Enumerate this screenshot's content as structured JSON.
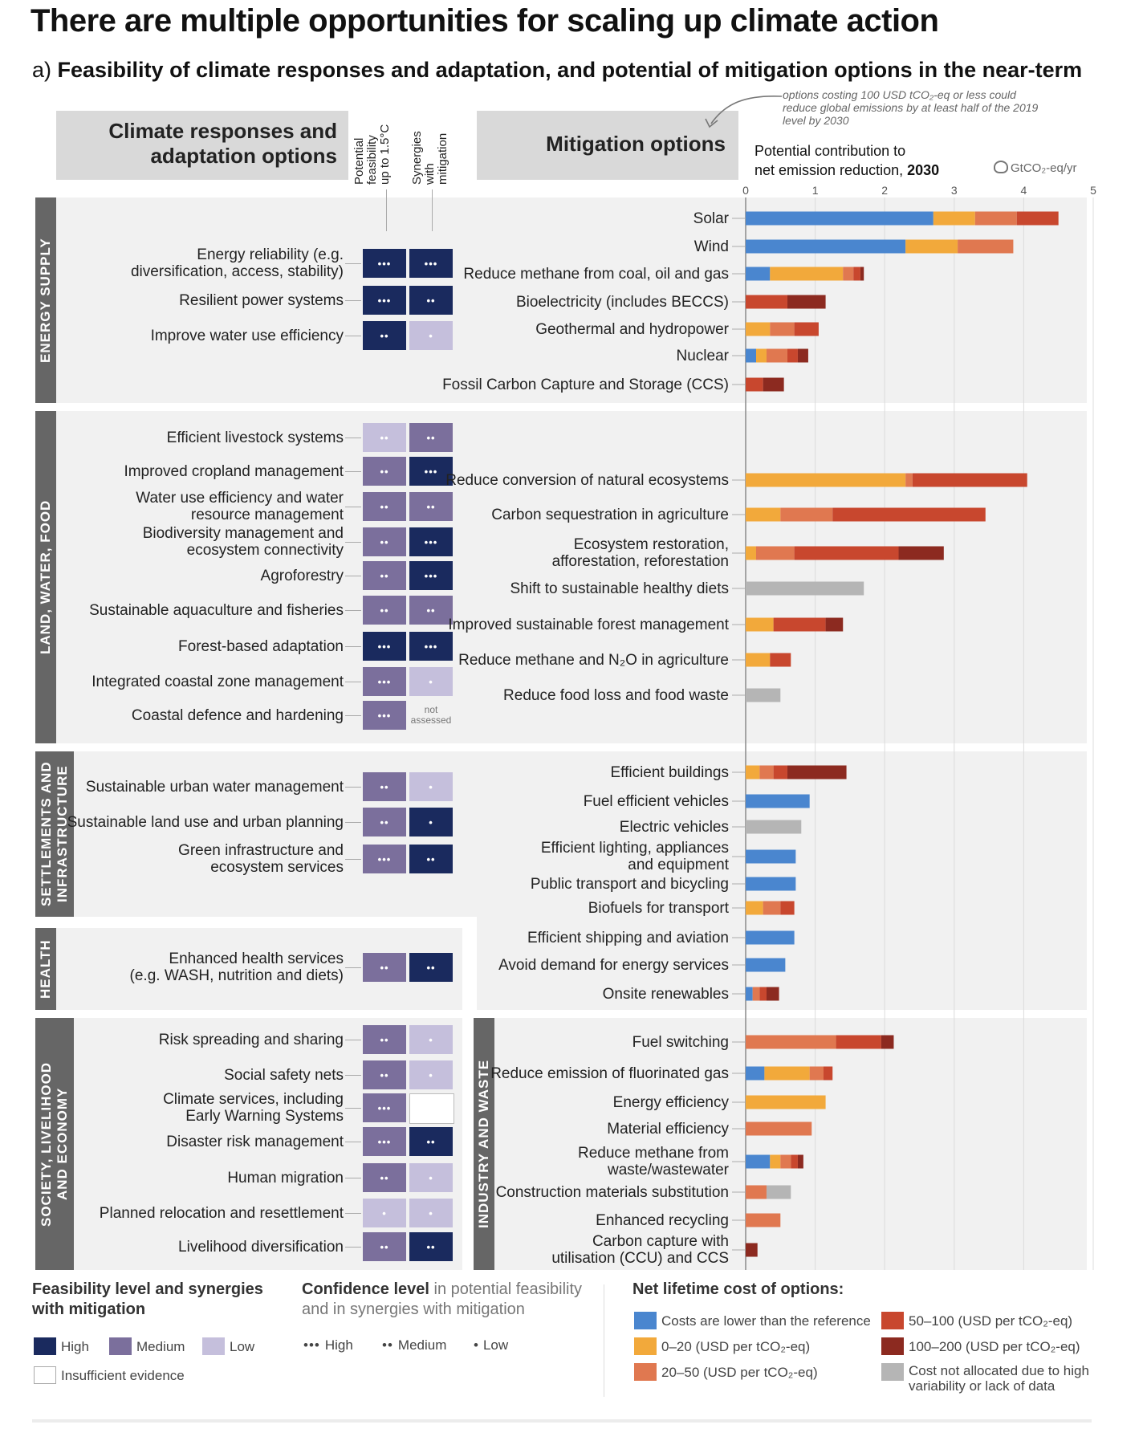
{
  "title": "There are multiple opportunities for scaling up climate action",
  "subtitle_prefix": "a) ",
  "subtitle_bold": "Feasibility of climate responses and adaptation, and potential of mitigation options in the near-term",
  "headers": {
    "adaptation": "Climate responses and\nadaptation options",
    "feasibility_col": "Potential\nfeasibility\nup to 1.5°C",
    "synergies_col": "Synergies\nwith\nmitigation",
    "mitigation": "Mitigation options",
    "potential_label": "Potential contribution to\nnet emission reduction, ",
    "potential_year": "2030",
    "unit": "GtCO₂-eq/yr",
    "note": "options costing 100 USD tCO₂-eq or less could reduce global emissions by at least half of the 2019 level by 2030",
    "not_assessed": "not\nassessed"
  },
  "colors": {
    "high": "#1a2a5e",
    "medium": "#7b6f9c",
    "low": "#c5bfdc",
    "insufficient": "#ffffff",
    "cost_lower": "#4a86cf",
    "cost_0_20": "#f2a93b",
    "cost_20_50": "#e07850",
    "cost_50_100": "#c8472e",
    "cost_100_200": "#8c2a20",
    "cost_na": "#b5b5b5"
  },
  "sections": {
    "energy": "ENERGY SUPPLY",
    "land": "LAND, WATER, FOOD",
    "settlements": "SETTLEMENTS AND\nINFRASTRUCTURE",
    "health": "HEALTH",
    "society": "SOCIETY, LIVELIHOOD\nAND ECONOMY",
    "industry": "INDUSTRY AND WASTE"
  },
  "adaptation": [
    {
      "label": "Energy reliability (e.g.\ndiversification, access, stability)",
      "feasibility": "high",
      "f_conf": "•••",
      "synergy": "high",
      "s_conf": "•••"
    },
    {
      "label": "Resilient power systems",
      "feasibility": "high",
      "f_conf": "•••",
      "synergy": "high",
      "s_conf": "••"
    },
    {
      "label": "Improve water use efficiency",
      "feasibility": "high",
      "f_conf": "••",
      "synergy": "low",
      "s_conf": "•"
    },
    {
      "label": "Efficient livestock systems",
      "feasibility": "low",
      "f_conf": "••",
      "synergy": "medium",
      "s_conf": "••"
    },
    {
      "label": "Improved cropland management",
      "feasibility": "medium",
      "f_conf": "••",
      "synergy": "high",
      "s_conf": "•••"
    },
    {
      "label": "Water use efficiency and water\nresource management",
      "feasibility": "medium",
      "f_conf": "••",
      "synergy": "medium",
      "s_conf": "••"
    },
    {
      "label": "Biodiversity management and\necosystem connectivity",
      "feasibility": "medium",
      "f_conf": "••",
      "synergy": "high",
      "s_conf": "•••"
    },
    {
      "label": "Agroforestry",
      "feasibility": "medium",
      "f_conf": "••",
      "synergy": "high",
      "s_conf": "•••"
    },
    {
      "label": "Sustainable aquaculture and fisheries",
      "feasibility": "medium",
      "f_conf": "••",
      "synergy": "medium",
      "s_conf": "••"
    },
    {
      "label": "Forest-based adaptation",
      "feasibility": "high",
      "f_conf": "•••",
      "synergy": "high",
      "s_conf": "•••"
    },
    {
      "label": "Integrated coastal zone management",
      "feasibility": "medium",
      "f_conf": "•••",
      "synergy": "low",
      "s_conf": "•"
    },
    {
      "label": "Coastal defence and hardening",
      "feasibility": "medium",
      "f_conf": "•••",
      "synergy": "na",
      "s_conf": ""
    },
    {
      "label": "Sustainable urban water management",
      "feasibility": "medium",
      "f_conf": "••",
      "synergy": "low",
      "s_conf": "•"
    },
    {
      "label": "Sustainable land use and urban planning",
      "feasibility": "medium",
      "f_conf": "••",
      "synergy": "high",
      "s_conf": "•"
    },
    {
      "label": "Green infrastructure and\necosystem services",
      "feasibility": "medium",
      "f_conf": "•••",
      "synergy": "high",
      "s_conf": "••"
    },
    {
      "label": "Enhanced health services\n(e.g. WASH, nutrition and diets)",
      "feasibility": "medium",
      "f_conf": "••",
      "synergy": "high",
      "s_conf": "••"
    },
    {
      "label": "Risk spreading and sharing",
      "feasibility": "medium",
      "f_conf": "••",
      "synergy": "low",
      "s_conf": "•"
    },
    {
      "label": "Social safety nets",
      "feasibility": "medium",
      "f_conf": "••",
      "synergy": "low",
      "s_conf": "•"
    },
    {
      "label": "Climate services, including\nEarly Warning Systems",
      "feasibility": "medium",
      "f_conf": "•••",
      "synergy": "insufficient",
      "s_conf": ""
    },
    {
      "label": "Disaster risk management",
      "feasibility": "medium",
      "f_conf": "•••",
      "synergy": "high",
      "s_conf": "••"
    },
    {
      "label": "Human migration",
      "feasibility": "medium",
      "f_conf": "••",
      "synergy": "low",
      "s_conf": "•"
    },
    {
      "label": "Planned relocation and resettlement",
      "feasibility": "low",
      "f_conf": "•",
      "synergy": "low",
      "s_conf": "•"
    },
    {
      "label": "Livelihood diversification",
      "feasibility": "medium",
      "f_conf": "••",
      "synergy": "high",
      "s_conf": "••"
    }
  ],
  "chart_data": {
    "type": "bar",
    "orientation": "horizontal-stacked",
    "xlabel": "Potential contribution to net emission reduction, 2030 (GtCO₂-eq/yr)",
    "xlim": [
      0,
      5
    ],
    "xticks": [
      0,
      1,
      2,
      3,
      4,
      5
    ],
    "segment_order": [
      "cost_lower",
      "cost_0_20",
      "cost_20_50",
      "cost_50_100",
      "cost_100_200",
      "cost_na"
    ],
    "options": [
      {
        "label": "Solar",
        "segments": [
          2.7,
          0.6,
          0.6,
          0.6,
          0,
          0
        ]
      },
      {
        "label": "Wind",
        "segments": [
          2.3,
          0.75,
          0.8,
          0,
          0,
          0
        ]
      },
      {
        "label": "Reduce methane from coal, oil and gas",
        "segments": [
          0.35,
          1.05,
          0.15,
          0.1,
          0.05,
          0
        ]
      },
      {
        "label": "Bioelectricity (includes BECCS)",
        "segments": [
          0,
          0,
          0,
          0.6,
          0.55,
          0
        ]
      },
      {
        "label": "Geothermal and hydropower",
        "segments": [
          0,
          0.35,
          0.35,
          0.35,
          0,
          0
        ]
      },
      {
        "label": "Nuclear",
        "segments": [
          0.15,
          0.15,
          0.3,
          0.15,
          0.15,
          0
        ]
      },
      {
        "label": "Fossil Carbon Capture and Storage (CCS)",
        "segments": [
          0,
          0,
          0,
          0.25,
          0.3,
          0
        ]
      },
      {
        "label": "Reduce conversion of natural ecosystems",
        "segments": [
          0,
          2.3,
          0.1,
          1.65,
          0,
          0
        ]
      },
      {
        "label": "Carbon sequestration in agriculture",
        "segments": [
          0,
          0.5,
          0.75,
          2.2,
          0,
          0
        ]
      },
      {
        "label": "Ecosystem restoration,\nafforestation, reforestation",
        "segments": [
          0,
          0.15,
          0.55,
          1.5,
          0.65,
          0
        ]
      },
      {
        "label": "Shift to sustainable healthy diets",
        "segments": [
          0,
          0,
          0,
          0,
          0,
          1.7
        ]
      },
      {
        "label": "Improved sustainable forest management",
        "segments": [
          0,
          0.4,
          0,
          0.75,
          0.25,
          0
        ]
      },
      {
        "label": "Reduce methane and N₂O in agriculture",
        "segments": [
          0,
          0.35,
          0,
          0.3,
          0,
          0
        ]
      },
      {
        "label": "Reduce food loss and food waste",
        "segments": [
          0,
          0,
          0,
          0,
          0,
          0.5
        ]
      },
      {
        "label": "Efficient buildings",
        "segments": [
          0,
          0.2,
          0.2,
          0.2,
          0.85,
          0
        ]
      },
      {
        "label": "Fuel efficient vehicles",
        "segments": [
          0.92,
          0,
          0,
          0,
          0,
          0
        ]
      },
      {
        "label": "Electric vehicles",
        "segments": [
          0,
          0,
          0,
          0,
          0,
          0.8
        ]
      },
      {
        "label": "Efficient lighting, appliances\nand equipment",
        "segments": [
          0.72,
          0,
          0,
          0,
          0,
          0
        ]
      },
      {
        "label": "Public transport and bicycling",
        "segments": [
          0.72,
          0,
          0,
          0,
          0,
          0
        ]
      },
      {
        "label": "Biofuels for transport",
        "segments": [
          0,
          0.25,
          0.25,
          0.2,
          0,
          0
        ]
      },
      {
        "label": "Efficient shipping and aviation",
        "segments": [
          0.7,
          0,
          0,
          0,
          0,
          0
        ]
      },
      {
        "label": "Avoid demand for energy services",
        "segments": [
          0.57,
          0,
          0,
          0,
          0,
          0
        ]
      },
      {
        "label": "Onsite renewables",
        "segments": [
          0.1,
          0,
          0.1,
          0.1,
          0.18,
          0
        ]
      },
      {
        "label": "Fuel switching",
        "segments": [
          0,
          0,
          1.3,
          0.65,
          0.18,
          0
        ]
      },
      {
        "label": "Reduce emission of fluorinated gas",
        "segments": [
          0.27,
          0.65,
          0.2,
          0.13,
          0,
          0
        ]
      },
      {
        "label": "Energy efficiency",
        "segments": [
          0,
          1.15,
          0,
          0,
          0,
          0
        ]
      },
      {
        "label": "Material efficiency",
        "segments": [
          0,
          0,
          0.95,
          0,
          0,
          0
        ]
      },
      {
        "label": "Reduce methane from\nwaste/wastewater",
        "segments": [
          0.35,
          0.15,
          0.15,
          0.1,
          0.08,
          0
        ]
      },
      {
        "label": "Construction materials substitution",
        "segments": [
          0,
          0,
          0.3,
          0,
          0,
          0.35
        ]
      },
      {
        "label": "Enhanced recycling",
        "segments": [
          0,
          0,
          0.5,
          0,
          0,
          0
        ]
      },
      {
        "label": "Carbon capture with\nutilisation (CCU) and CCS",
        "segments": [
          0,
          0,
          0,
          0,
          0.17,
          0
        ]
      }
    ]
  },
  "legend": {
    "feasibility_title": "Feasibility level and synergies\nwith mitigation",
    "high": "High",
    "medium": "Medium",
    "low": "Low",
    "insufficient": "Insufficient evidence",
    "confidence_bold": "Confidence level",
    "confidence_rest": " in potential feasibility\nand in synergies with mitigation",
    "conf_high_dots": "•••",
    "conf_high": "High",
    "conf_medium_dots": "••",
    "conf_medium": "Medium",
    "conf_low_dots": "•",
    "conf_low": "Low",
    "cost_title": "Net lifetime cost of options:",
    "cost_lower": "Costs are lower than the reference",
    "cost_0_20": "0–20 (USD per tCO₂-eq)",
    "cost_20_50": "20–50 (USD per tCO₂-eq)",
    "cost_50_100": "50–100 (USD per tCO₂-eq)",
    "cost_100_200": "100–200 (USD per tCO₂-eq)",
    "cost_na": "Cost not allocated due to high\nvariability or lack of data"
  }
}
